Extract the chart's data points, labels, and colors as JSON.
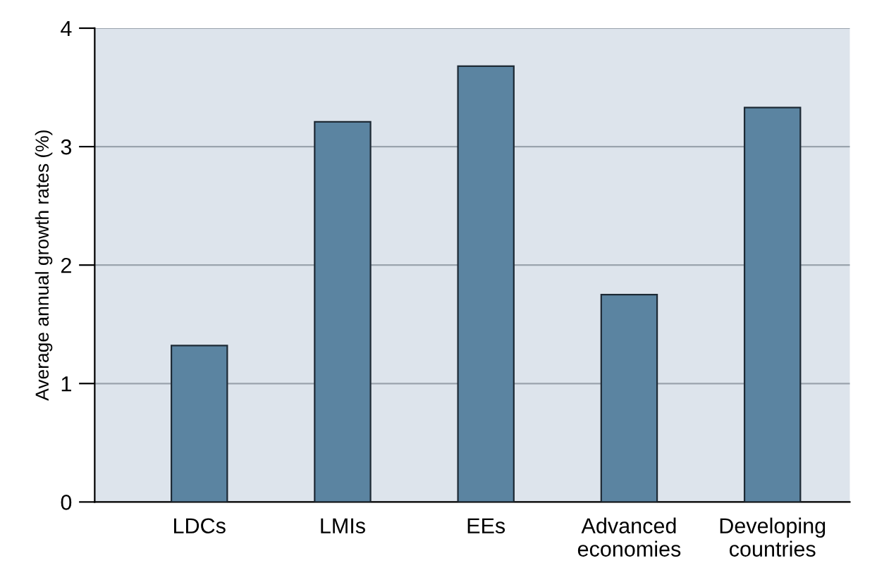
{
  "chart_data": {
    "type": "bar",
    "ylabel": "Average annual growth rates (%)",
    "categories": [
      "LDCs",
      "LMIs",
      "EEs",
      "Advanced\neconomies",
      "Developing\ncountries"
    ],
    "values": [
      1.32,
      3.21,
      3.68,
      1.75,
      3.33
    ],
    "color": "#5b84a1",
    "ylim": [
      0,
      4
    ],
    "yticks": [
      0,
      1,
      2,
      3,
      4
    ],
    "grid": "y"
  }
}
